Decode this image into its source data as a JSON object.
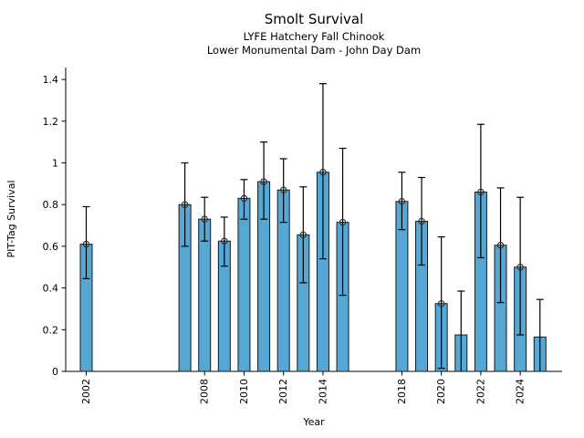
{
  "chart_data": {
    "type": "bar",
    "title": "Smolt Survival",
    "subtitle_line1": "LYFE Hatchery Fall Chinook",
    "subtitle_line2": "Lower Monumental Dam - John Day Dam",
    "xlabel": "Year",
    "ylabel": "PIT-Tag Survival",
    "ylim": [
      0,
      1.45
    ],
    "xlim": [
      2001,
      2026.1
    ],
    "grid": false,
    "legend": null,
    "bar_color": "#56a7d4",
    "bar_edge_color": "#1a1a1a",
    "error_color": "#000000",
    "marker_color": "#2b2b2b",
    "yticks": [
      0,
      0.2,
      0.4,
      0.6,
      0.8,
      1,
      1.2,
      1.4
    ],
    "ytick_labels": [
      "0",
      "0.2",
      "0.4",
      "0.6",
      "0.8",
      "1",
      "1.2",
      "1.4"
    ],
    "xticks": [
      2002,
      2008,
      2010,
      2012,
      2014,
      2018,
      2020,
      2022,
      2024
    ],
    "xtick_labels": [
      "2002",
      "2008",
      "2010",
      "2012",
      "2014",
      "2018",
      "2020",
      "2022",
      "2024"
    ],
    "bars": [
      {
        "year": 2002,
        "value": 0.61,
        "err_low": 0.445,
        "err_high": 0.79,
        "marker": true
      },
      {
        "year": 2007,
        "value": 0.8,
        "err_low": 0.6,
        "err_high": 1.0,
        "marker": true
      },
      {
        "year": 2008,
        "value": 0.73,
        "err_low": 0.625,
        "err_high": 0.835,
        "marker": true
      },
      {
        "year": 2009,
        "value": 0.625,
        "err_low": 0.505,
        "err_high": 0.74,
        "marker": true
      },
      {
        "year": 2010,
        "value": 0.83,
        "err_low": 0.73,
        "err_high": 0.92,
        "marker": true
      },
      {
        "year": 2011,
        "value": 0.91,
        "err_low": 0.73,
        "err_high": 1.1,
        "marker": true
      },
      {
        "year": 2012,
        "value": 0.87,
        "err_low": 0.715,
        "err_high": 1.02,
        "marker": true
      },
      {
        "year": 2013,
        "value": 0.655,
        "err_low": 0.425,
        "err_high": 0.885,
        "marker": true
      },
      {
        "year": 2014,
        "value": 0.955,
        "err_low": 0.54,
        "err_high": 1.38,
        "marker": true
      },
      {
        "year": 2015,
        "value": 0.715,
        "err_low": 0.365,
        "err_high": 1.07,
        "marker": true
      },
      {
        "year": 2018,
        "value": 0.815,
        "err_low": 0.68,
        "err_high": 0.955,
        "marker": true
      },
      {
        "year": 2019,
        "value": 0.72,
        "err_low": 0.51,
        "err_high": 0.93,
        "marker": true
      },
      {
        "year": 2020,
        "value": 0.325,
        "err_low": 0.015,
        "err_high": 0.645,
        "marker": true
      },
      {
        "year": 2021,
        "value": 0.175,
        "err_low": 0.0,
        "err_high": 0.385,
        "marker": false
      },
      {
        "year": 2022,
        "value": 0.86,
        "err_low": 0.545,
        "err_high": 1.185,
        "marker": true
      },
      {
        "year": 2023,
        "value": 0.605,
        "err_low": 0.33,
        "err_high": 0.88,
        "marker": true
      },
      {
        "year": 2024,
        "value": 0.5,
        "err_low": 0.175,
        "err_high": 0.835,
        "marker": true
      },
      {
        "year": 2025,
        "value": 0.165,
        "err_low": 0.0,
        "err_high": 0.345,
        "marker": false
      }
    ]
  }
}
